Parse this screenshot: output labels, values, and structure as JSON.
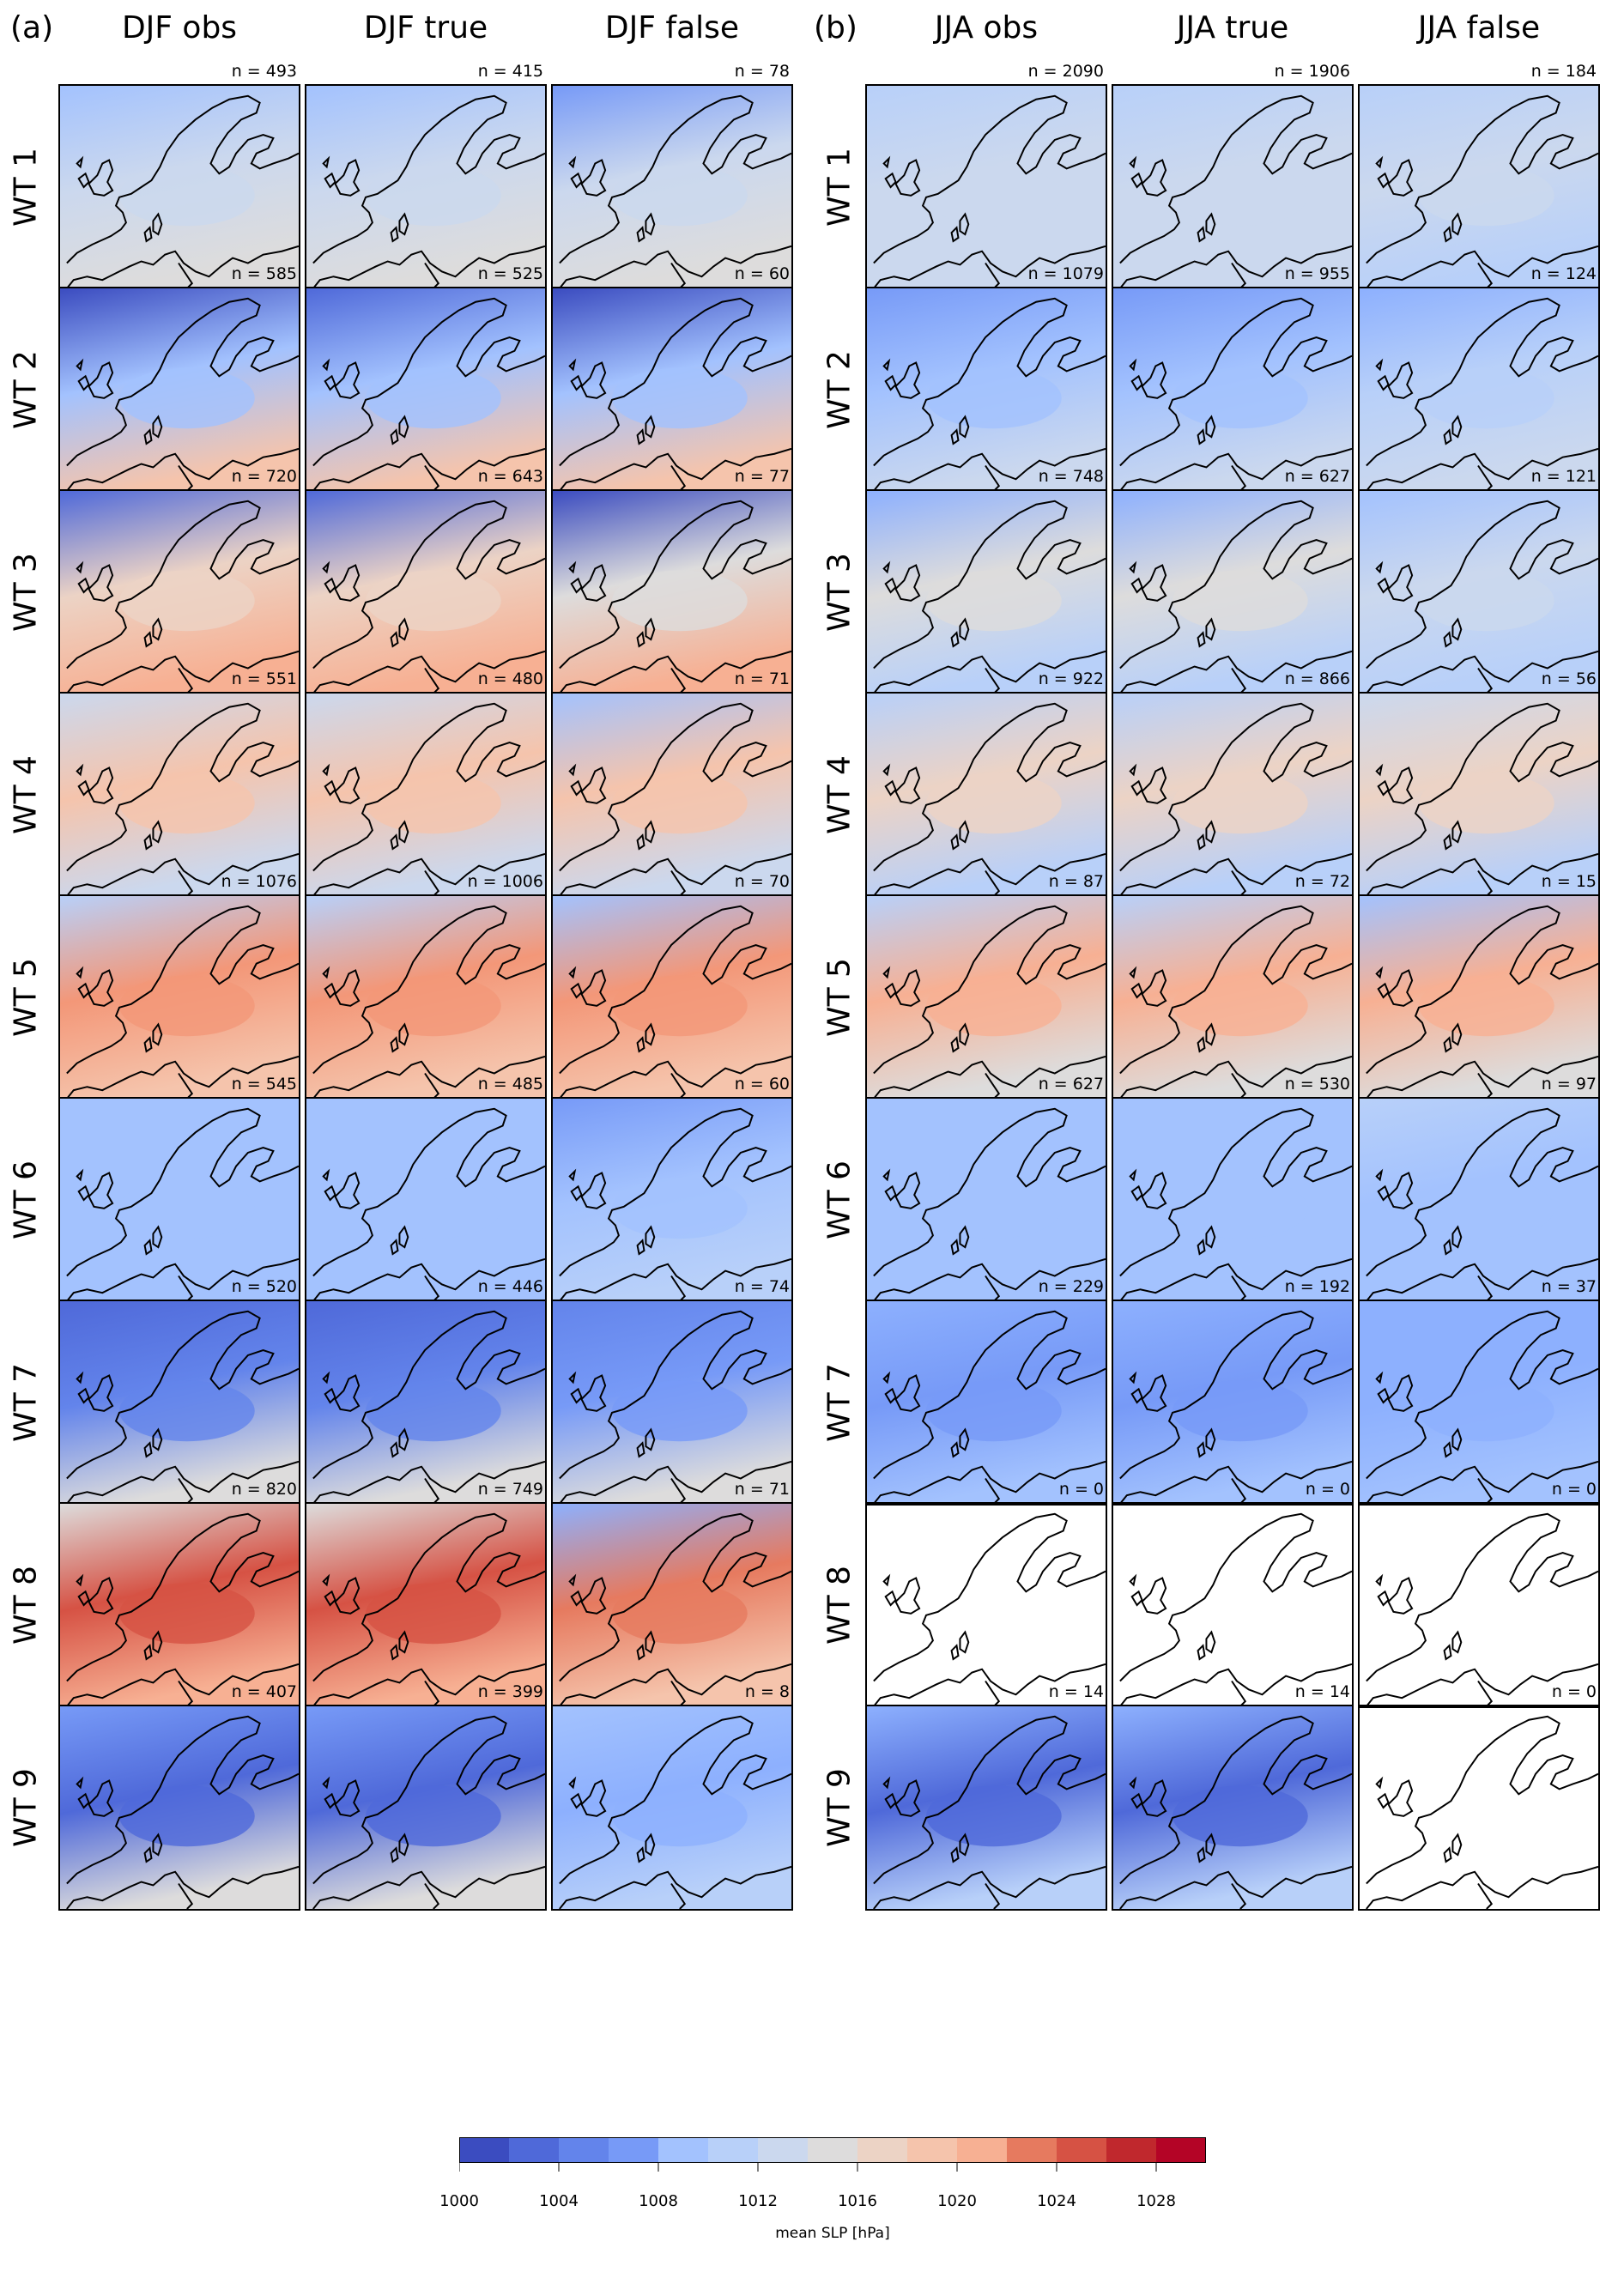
{
  "panels": [
    {
      "letter": "(a)",
      "season": "DJF",
      "columns": [
        {
          "title": "DJF obs",
          "n": [
            "n = 493",
            "n = 585",
            "n = 720",
            "n = 551",
            "n = 1076",
            "n = 545",
            "n = 520",
            "n = 820",
            "n = 407"
          ]
        },
        {
          "title": "DJF true",
          "n": [
            "n = 415",
            "n = 525",
            "n = 643",
            "n = 480",
            "n = 1006",
            "n = 485",
            "n = 446",
            "n = 749",
            "n = 399"
          ]
        },
        {
          "title": "DJF false",
          "n": [
            "n = 78",
            "n = 60",
            "n = 77",
            "n = 71",
            "n = 70",
            "n = 60",
            "n = 74",
            "n = 71",
            "n = 8"
          ]
        }
      ]
    },
    {
      "letter": "(b)",
      "season": "JJA",
      "columns": [
        {
          "title": "JJA obs",
          "n": [
            "n = 2090",
            "n = 1079",
            "n = 748",
            "n = 922",
            "n = 87",
            "n = 627",
            "n = 229",
            "n = 0",
            "n = 14"
          ]
        },
        {
          "title": "JJA true",
          "n": [
            "n = 1906",
            "n = 955",
            "n = 627",
            "n = 866",
            "n = 72",
            "n = 530",
            "n = 192",
            "n = 0",
            "n = 14"
          ]
        },
        {
          "title": "JJA false",
          "n": [
            "n = 184",
            "n = 124",
            "n = 121",
            "n = 56",
            "n = 15",
            "n = 97",
            "n = 37",
            "n = 0",
            "n = 0"
          ]
        }
      ]
    }
  ],
  "rows": [
    "WT 1",
    "WT 2",
    "WT 3",
    "WT 4",
    "WT 5",
    "WT 6",
    "WT 7",
    "WT 8",
    "WT 9"
  ],
  "colorbar": {
    "label": "mean SLP [hPa]",
    "min": 1000,
    "max": 1030,
    "step": 2,
    "tick_labels": [
      "1000",
      "1004",
      "1008",
      "1012",
      "1016",
      "1020",
      "1024",
      "1028"
    ],
    "tick_values": [
      1000,
      1004,
      1008,
      1012,
      1016,
      1020,
      1024,
      1028
    ],
    "colors": [
      "#3b4cc0",
      "#4f69d9",
      "#6384eb",
      "#779af7",
      "#8db0fe",
      "#a3c2fe",
      "#b8d0f9",
      "#cbd8ee",
      "#dddcdc",
      "#ecd3c5",
      "#f5c4ac",
      "#f7b093",
      "#f39778",
      "#e67a5f",
      "#d65244",
      "#c0282d",
      "#b40426"
    ]
  },
  "chart_data": {
    "type": "heatmap",
    "title": "",
    "xlabel": "",
    "ylabel": "",
    "colorbar_label": "mean SLP [hPa]",
    "colorbar_range": [
      1000,
      1030
    ],
    "rows": [
      "WT 1",
      "WT 2",
      "WT 3",
      "WT 4",
      "WT 5",
      "WT 6",
      "WT 7",
      "WT 8",
      "WT 9"
    ],
    "columns": [
      "DJF obs",
      "DJF true",
      "DJF false",
      "JJA obs",
      "JJA true",
      "JJA false"
    ],
    "sample_sizes": [
      [
        493,
        415,
        78,
        2090,
        1906,
        184
      ],
      [
        585,
        525,
        60,
        1079,
        955,
        124
      ],
      [
        720,
        643,
        77,
        748,
        627,
        121
      ],
      [
        551,
        480,
        71,
        922,
        866,
        56
      ],
      [
        1076,
        1006,
        70,
        87,
        72,
        15
      ],
      [
        545,
        485,
        60,
        627,
        530,
        97
      ],
      [
        520,
        446,
        74,
        229,
        192,
        37
      ],
      [
        820,
        749,
        71,
        0,
        0,
        0
      ],
      [
        407,
        399,
        8,
        14,
        14,
        0
      ]
    ],
    "approx_mean_slp_hPa": {
      "WT 1": {
        "north": [
          1011,
          1011,
          1007,
          1012,
          1013,
          1013
        ],
        "center": [
          1015,
          1015,
          1014,
          1014,
          1014,
          1014
        ],
        "south": [
          1017,
          1017,
          1017,
          1014,
          1014,
          1013
        ]
      },
      "WT 2": {
        "north": [
          1001,
          1002,
          1001,
          1006,
          1007,
          1009
        ],
        "center": [
          1011,
          1011,
          1010,
          1011,
          1011,
          1012
        ],
        "south": [
          1020,
          1020,
          1020,
          1014,
          1014,
          1014
        ]
      },
      "WT 3": {
        "north": [
          1003,
          1003,
          1001,
          1009,
          1009,
          1011
        ],
        "center": [
          1018,
          1018,
          1017,
          1016,
          1016,
          1015
        ],
        "south": [
          1023,
          1023,
          1022,
          1013,
          1013,
          1013
        ]
      },
      "WT 4": {
        "north": [
          1014,
          1014,
          1010,
          1013,
          1013,
          1014
        ],
        "center": [
          1021,
          1021,
          1020,
          1019,
          1019,
          1018
        ],
        "south": [
          1014,
          1014,
          1015,
          1013,
          1013,
          1013
        ]
      },
      "WT 5": {
        "north": [
          1013,
          1013,
          1010,
          1012,
          1013,
          1010
        ],
        "center": [
          1025,
          1025,
          1024,
          1022,
          1023,
          1022
        ],
        "south": [
          1021,
          1021,
          1021,
          1016,
          1017,
          1016
        ]
      },
      "WT 6": {
        "north": [
          1010,
          1010,
          1007,
          1010,
          1011,
          1012
        ],
        "center": [
          1010,
          1010,
          1011,
          1010,
          1011,
          1011
        ],
        "south": [
          1011,
          1011,
          1012,
          1010,
          1011,
          1011
        ]
      },
      "WT 7": {
        "north": [
          1002,
          1003,
          1004,
          1008,
          1008,
          1009
        ],
        "center": [
          1005,
          1005,
          1006,
          1007,
          1007,
          1008
        ],
        "south": [
          1016,
          1016,
          1016,
          1010,
          1010,
          1010
        ]
      },
      "WT 8": {
        "north": [
          1016,
          1016,
          1008,
          null,
          null,
          null
        ],
        "center": [
          1029,
          1029,
          1026,
          null,
          null,
          null
        ],
        "south": [
          1023,
          1023,
          1020,
          null,
          null,
          null
        ]
      },
      "WT 9": {
        "north": [
          1006,
          1006,
          1011,
          1008,
          1008,
          null
        ],
        "center": [
          1003,
          1003,
          1009,
          1003,
          1003,
          null
        ],
        "south": [
          1016,
          1016,
          1012,
          1012,
          1012,
          null
        ]
      }
    }
  }
}
